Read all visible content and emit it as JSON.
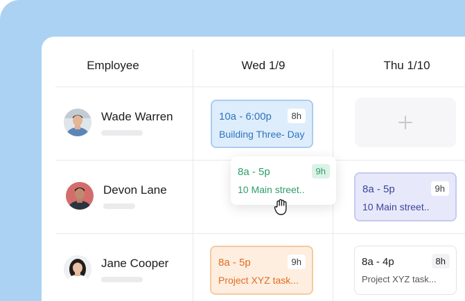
{
  "columns": {
    "employee": "Employee",
    "day1": "Wed 1/9",
    "day2": "Thu 1/10"
  },
  "employees": [
    {
      "name": "Wade Warren"
    },
    {
      "name": "Devon Lane"
    },
    {
      "name": "Jane Cooper"
    }
  ],
  "shifts": {
    "wade_wed": {
      "time": "10a - 6:00p",
      "hours": "8h",
      "location": "Building Three- Day"
    },
    "devon_drag": {
      "time": "8a - 5p",
      "hours": "9h",
      "location": "10 Main street.."
    },
    "devon_thu": {
      "time": "8a - 5p",
      "hours": "9h",
      "location": "10 Main street.."
    },
    "jane_wed": {
      "time": "8a - 5p",
      "hours": "9h",
      "location": "Project XYZ task..."
    },
    "jane_thu": {
      "time": "8a - 4p",
      "hours": "8h",
      "location": "Project XYZ task..."
    }
  },
  "colors": {
    "backdrop": "#acd2f3",
    "blue": "#2f74bf",
    "green": "#2e9c6a",
    "purple": "#3b4596",
    "orange": "#e26c21"
  },
  "icons": {
    "add": "plus-icon",
    "cursor": "grab-hand-icon"
  }
}
